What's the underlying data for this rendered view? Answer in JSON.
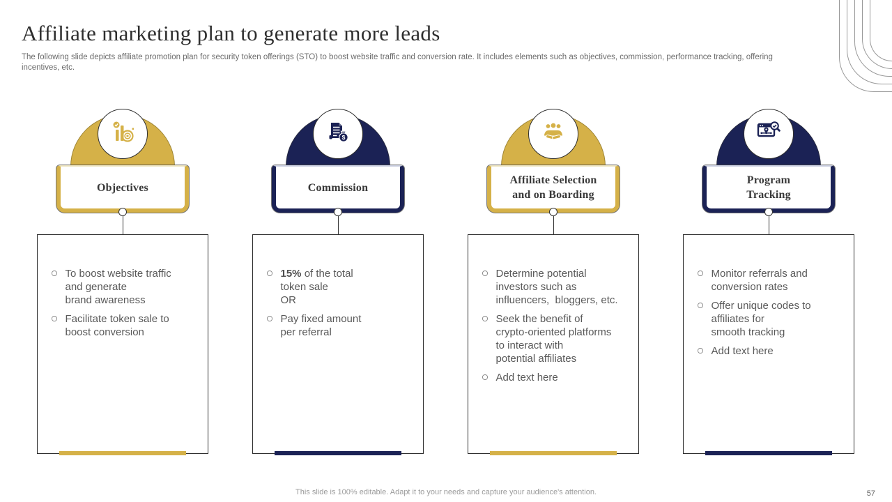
{
  "slide": {
    "title": "Affiliate marketing plan to generate more leads",
    "subtitle": "The following slide depicts affiliate promotion plan for security token offerings (STO) to boost website traffic and conversion rate. It includes elements such as objectives, commission, performance tracking, offering incentives, etc.",
    "footer_note": "This slide is 100% editable. Adapt it to your needs and capture your audience's attention.",
    "page_number": "57"
  },
  "colors": {
    "gold": "#D5B148",
    "gold_light": "#EFE6C2",
    "navy": "#1B2255",
    "navy_light": "#CDD1E3",
    "title_text": "#2E2E2E",
    "body_text": "#595959"
  },
  "columns": [
    {
      "id": "objectives",
      "theme": "gold",
      "icon": "bar-chart-target-icon",
      "title": "Objectives",
      "bullets": [
        {
          "segments": [
            {
              "text": "To boost website traffic\nand generate\nbrand awareness"
            }
          ]
        },
        {
          "segments": [
            {
              "text": "Facilitate token sale to\nboost conversion"
            }
          ]
        }
      ]
    },
    {
      "id": "commission",
      "theme": "navy",
      "icon": "invoice-money-bag-icon",
      "title": "Commission",
      "bullets": [
        {
          "segments": [
            {
              "text": "15%",
              "bold": true
            },
            {
              "text": " of the total\ntoken sale\nOR"
            }
          ]
        },
        {
          "segments": [
            {
              "text": "Pay fixed amount\nper referral"
            }
          ]
        }
      ]
    },
    {
      "id": "affiliate-selection",
      "theme": "gold",
      "icon": "team-handshake-icon",
      "title": "Affiliate Selection\nand on Boarding",
      "bullets": [
        {
          "segments": [
            {
              "text": "Determine potential\ninvestors such as\ninfluencers,  bloggers, etc."
            }
          ]
        },
        {
          "segments": [
            {
              "text": "Seek the benefit of\ncrypto-oriented platforms\nto interact with\npotential affiliates"
            }
          ]
        },
        {
          "segments": [
            {
              "text": "Add text here"
            }
          ]
        }
      ]
    },
    {
      "id": "program-tracking",
      "theme": "navy",
      "icon": "monitor-pin-search-icon",
      "title": "Program\nTracking",
      "bullets": [
        {
          "segments": [
            {
              "text": "Monitor referrals and\nconversion rates"
            }
          ]
        },
        {
          "segments": [
            {
              "text": "Offer unique codes to\naffiliates for\nsmooth tracking"
            }
          ]
        },
        {
          "segments": [
            {
              "text": "Add text here"
            }
          ]
        }
      ]
    }
  ]
}
